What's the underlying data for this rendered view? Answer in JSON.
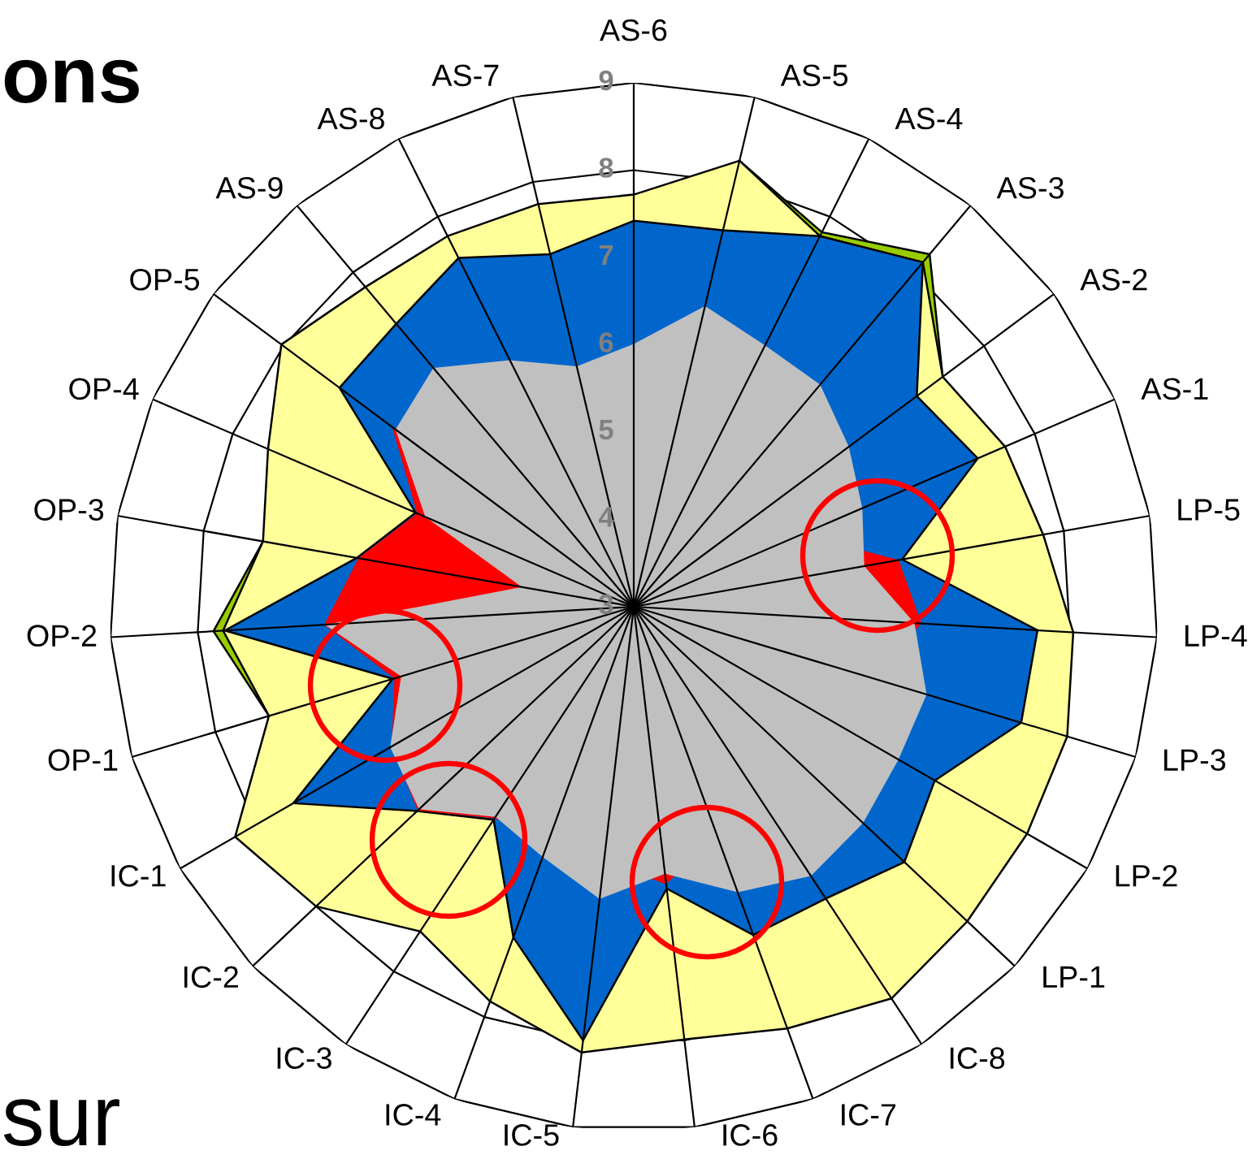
{
  "chart_data": {
    "type": "radar",
    "categories": [
      "AS-6",
      "AS-5",
      "AS-4",
      "AS-3",
      "AS-2",
      "AS-1",
      "LP-5",
      "LP-4",
      "LP-3",
      "LP-2",
      "LP-1",
      "IC-8",
      "IC-7",
      "IC-6",
      "IC-5",
      "IC-4",
      "IC-3",
      "IC-2",
      "IC-1",
      "OP-1",
      "OP-2",
      "OP-3",
      "OP-4",
      "OP-5",
      "AS-9",
      "AS-8",
      "AS-7"
    ],
    "series": [
      {
        "color": "#99cc00",
        "line_style": "solid",
        "values": [
          null,
          8.25,
          7.8,
          8.27,
          7.41,
          null,
          null,
          null,
          null,
          null,
          null,
          null,
          null,
          null,
          null,
          null,
          null,
          null,
          null,
          7.36,
          7.82,
          7.31,
          null,
          null,
          null,
          null,
          null
        ]
      },
      {
        "color": "#ffff99",
        "line_style": "solid",
        "values": [
          7.72,
          8.25,
          7.75,
          8.15,
          7.41,
          7.63,
          7.76,
          8.04,
          8.18,
          8.2,
          8.25,
          8.37,
          8.14,
          7.99,
          8.14,
          7.81,
          7.45,
          8.0,
          8.27,
          7.36,
          7.71,
          7.31,
          7.56,
          8.03,
          7.78,
          7.75,
          7.74
        ]
      },
      {
        "color": "#0066cc",
        "line_style": "solid",
        "values": [
          7.42,
          7.43,
          7.75,
          8.15,
          7.04,
          7.29,
          6.12,
          7.63,
          7.63,
          6.98,
          7.26,
          7.0,
          7.0,
          6.25,
          8.0,
          7.03,
          5.92,
          6.41,
          7.5,
          5.88,
          7.69,
          6.22,
          5.72,
          7.2,
          7.23,
          7.47,
          7.15
        ]
      },
      {
        "color": "#ff0000",
        "values": [
          null,
          null,
          null,
          null,
          null,
          null,
          6.08,
          6.3,
          null,
          null,
          null,
          null,
          null,
          6.2,
          null,
          null,
          5.9,
          6.4,
          6.2,
          5.86,
          6.55,
          6.2,
          5.7,
          6.45,
          null,
          null,
          null
        ]
      },
      {
        "color": "#c0c0c0",
        "values": [
          6.01,
          6.54,
          6.35,
          6.32,
          6.07,
          5.85,
          5.68,
          6.22,
          6.5,
          6.5,
          6.61,
          6.69,
          6.48,
          6.08,
          6.37,
          6.05,
          5.88,
          6.38,
          6.22,
          5.78,
          6.54,
          4.3,
          5.6,
          6.4,
          6.57,
          6.16,
          5.83
        ]
      }
    ],
    "ylim": [
      3,
      9
    ],
    "yticks": [
      3,
      4,
      5,
      6,
      7,
      8,
      9
    ],
    "grid": true,
    "annotations": [
      "ons",
      "sur"
    ]
  }
}
